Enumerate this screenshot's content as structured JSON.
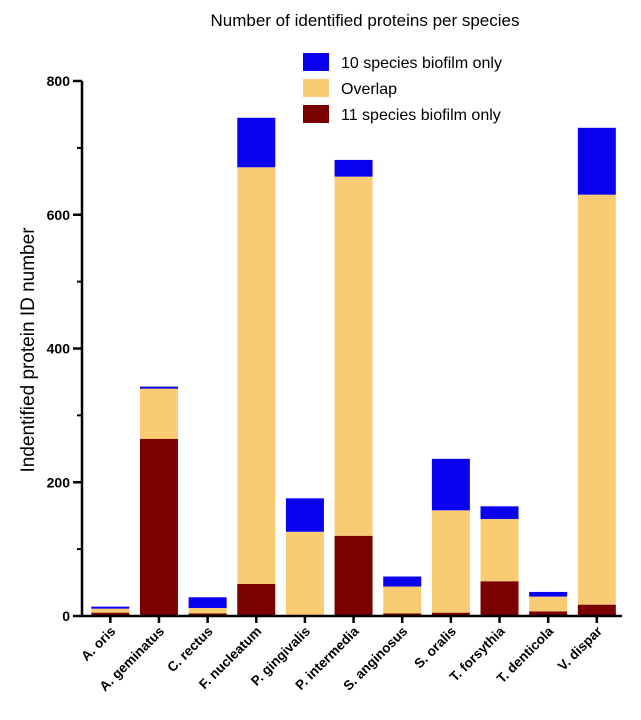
{
  "chart_data": {
    "type": "bar",
    "stacked": true,
    "title": "Number of identified proteins per species",
    "xlabel": "",
    "ylabel": "Indentified protein ID number",
    "ylim": [
      0,
      800
    ],
    "yticks": [
      "0",
      "200",
      "400",
      "600",
      "800"
    ],
    "grid": false,
    "legend_position": "top-right",
    "categories": [
      "A. oris",
      "A. geminatus",
      "C. rectus",
      "F. nucleatum",
      "P. gingivalis",
      "P. intermedia",
      "S. anginosus",
      "S. oralis",
      "T. forsythia",
      "T. denticola",
      "V. dispar"
    ],
    "series": [
      {
        "name": "11 species biofilm only",
        "color": "#7b0000",
        "values": [
          5,
          265,
          4,
          48,
          0,
          120,
          4,
          5,
          52,
          7,
          17
        ]
      },
      {
        "name": "Overlap",
        "color": "#f9cb72",
        "values": [
          6,
          75,
          8,
          623,
          126,
          537,
          40,
          153,
          93,
          22,
          613
        ]
      },
      {
        "name": "10 species biofilm only",
        "color": "#0a00f0",
        "values": [
          3,
          3,
          16,
          74,
          50,
          25,
          15,
          77,
          19,
          7,
          100
        ]
      }
    ],
    "legend_order": [
      2,
      1,
      0
    ]
  }
}
